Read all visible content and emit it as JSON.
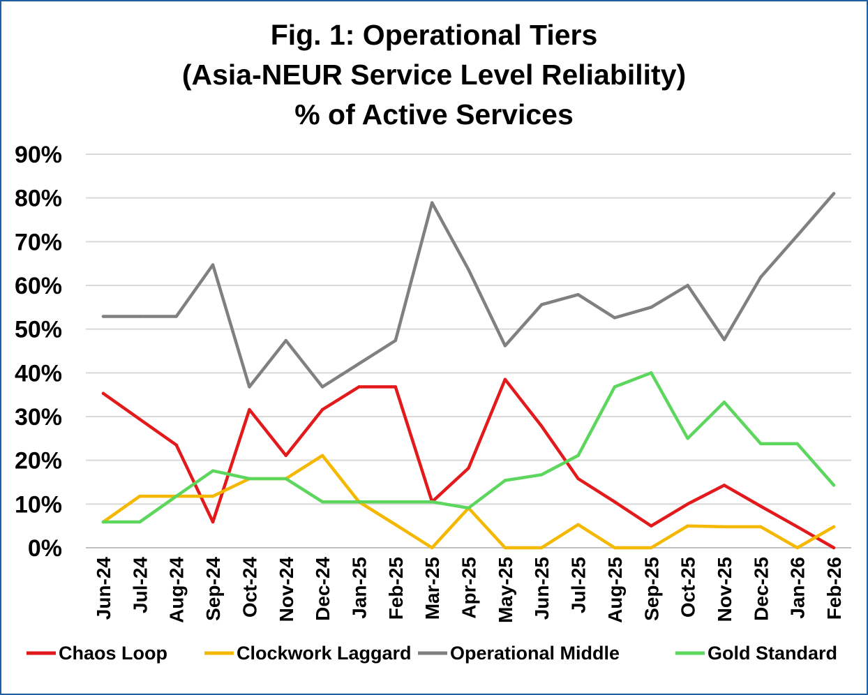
{
  "chart_data": {
    "type": "line",
    "title_lines": [
      "Fig. 1: Operational Tiers",
      "(Asia-NEUR Service Level Reliability)",
      "% of Active Services"
    ],
    "categories": [
      "Jun-24",
      "Jul-24",
      "Aug-24",
      "Sep-24",
      "Oct-24",
      "Nov-24",
      "Dec-24",
      "Jan-25",
      "Feb-25",
      "Mar-25",
      "Apr-25",
      "May-25",
      "Jun-25",
      "Jul-25",
      "Aug-25",
      "Sep-25",
      "Oct-25",
      "Nov-25",
      "Dec-25",
      "Jan-26",
      "Feb-26"
    ],
    "y_ticks": [
      "0%",
      "10%",
      "20%",
      "30%",
      "40%",
      "50%",
      "60%",
      "70%",
      "80%",
      "90%"
    ],
    "ylim": [
      0,
      90
    ],
    "grid": true,
    "legend_position": "bottom",
    "series": [
      {
        "name": "Chaos Loop",
        "color": "#e31a1c",
        "values": [
          35.3,
          29.4,
          23.5,
          5.9,
          31.6,
          21.1,
          31.6,
          36.8,
          36.8,
          10.5,
          18.2,
          38.5,
          27.8,
          15.8,
          10.5,
          5.0,
          10.0,
          14.3,
          9.5,
          4.8,
          0.0
        ]
      },
      {
        "name": "Clockwork Laggard",
        "color": "#f5b800",
        "values": [
          5.9,
          11.8,
          11.8,
          11.8,
          15.8,
          15.8,
          21.1,
          10.5,
          5.3,
          0.0,
          9.1,
          0.0,
          0.0,
          5.3,
          0.0,
          0.0,
          5.0,
          4.8,
          4.8,
          0.0,
          4.8
        ]
      },
      {
        "name": "Operational Middle",
        "color": "#808080",
        "values": [
          52.9,
          52.9,
          52.9,
          64.7,
          36.8,
          47.4,
          36.8,
          42.1,
          47.4,
          78.9,
          63.6,
          46.2,
          55.6,
          57.9,
          52.6,
          55.0,
          60.0,
          47.6,
          61.9,
          71.4,
          81.0
        ]
      },
      {
        "name": "Gold Standard",
        "color": "#5cd65c",
        "values": [
          5.9,
          5.9,
          11.8,
          17.6,
          15.8,
          15.8,
          10.5,
          10.5,
          10.5,
          10.5,
          9.1,
          15.4,
          16.7,
          21.1,
          36.8,
          40.0,
          25.0,
          33.3,
          23.8,
          23.8,
          14.3
        ]
      }
    ]
  }
}
